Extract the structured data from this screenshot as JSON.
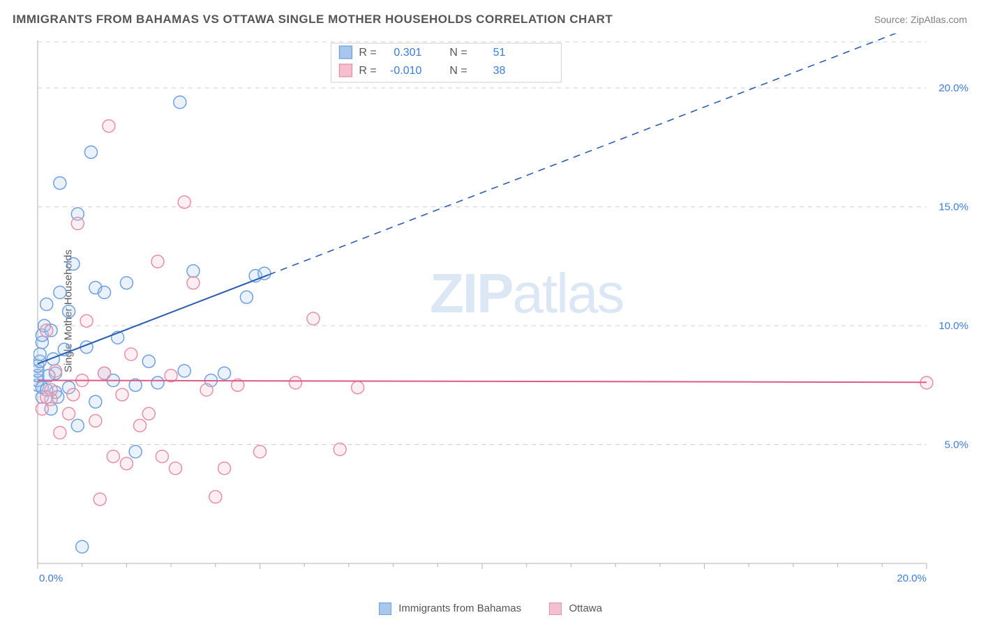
{
  "title": "IMMIGRANTS FROM BAHAMAS VS OTTAWA SINGLE MOTHER HOUSEHOLDS CORRELATION CHART",
  "source": "Source: ZipAtlas.com",
  "ylabel": "Single Mother Households",
  "watermark_a": "ZIP",
  "watermark_b": "atlas",
  "chart": {
    "type": "scatter",
    "xlim": [
      0,
      20
    ],
    "ylim": [
      0,
      22
    ],
    "x_ticks": [
      0,
      5,
      10,
      15,
      20
    ],
    "x_tick_labels": [
      "0.0%",
      "",
      "",
      "",
      "20.0%"
    ],
    "y_ticks": [
      5,
      10,
      15,
      20
    ],
    "y_tick_labels": [
      "5.0%",
      "10.0%",
      "15.0%",
      "20.0%"
    ],
    "marker_radius": 9,
    "marker_stroke_width": 1.5,
    "marker_fill_opacity": 0.25,
    "background_color": "#ffffff",
    "grid_color": "#d0d0d0",
    "axis_color": "#b0b0b0",
    "series": [
      {
        "name": "Immigrants from Bahamas",
        "color_stroke": "#6ea0e0",
        "color_fill": "#a9c6ec",
        "line_color": "#2a5db0",
        "R": "0.301",
        "N": "51",
        "trend": {
          "y0": 8.4,
          "slope": 0.72,
          "x_solid_end": 5.2,
          "x_dash_end": 20
        },
        "points": [
          [
            0.0,
            7.5
          ],
          [
            0.0,
            7.7
          ],
          [
            0.0,
            7.9
          ],
          [
            0.0,
            8.1
          ],
          [
            0.0,
            8.3
          ],
          [
            0.05,
            8.5
          ],
          [
            0.05,
            8.8
          ],
          [
            0.1,
            7.0
          ],
          [
            0.1,
            7.4
          ],
          [
            0.1,
            9.3
          ],
          [
            0.1,
            9.6
          ],
          [
            0.15,
            10.0
          ],
          [
            0.2,
            10.9
          ],
          [
            0.3,
            9.8
          ],
          [
            0.3,
            6.5
          ],
          [
            0.4,
            7.2
          ],
          [
            0.4,
            8.0
          ],
          [
            0.5,
            11.4
          ],
          [
            0.5,
            16.0
          ],
          [
            0.7,
            7.4
          ],
          [
            0.7,
            10.6
          ],
          [
            0.8,
            12.6
          ],
          [
            0.9,
            5.8
          ],
          [
            0.9,
            14.7
          ],
          [
            1.1,
            9.1
          ],
          [
            1.2,
            17.3
          ],
          [
            1.3,
            11.6
          ],
          [
            1.3,
            6.8
          ],
          [
            1.5,
            11.4
          ],
          [
            1.5,
            8.0
          ],
          [
            1.7,
            7.7
          ],
          [
            1.8,
            9.5
          ],
          [
            2.0,
            11.8
          ],
          [
            2.2,
            4.7
          ],
          [
            2.2,
            7.5
          ],
          [
            2.5,
            8.5
          ],
          [
            2.7,
            7.6
          ],
          [
            3.2,
            19.4
          ],
          [
            3.3,
            8.1
          ],
          [
            3.5,
            12.3
          ],
          [
            3.9,
            7.7
          ],
          [
            4.2,
            8.0
          ],
          [
            4.7,
            11.2
          ],
          [
            4.9,
            12.1
          ],
          [
            5.1,
            12.2
          ],
          [
            0.2,
            7.3
          ],
          [
            0.25,
            7.9
          ],
          [
            0.35,
            8.6
          ],
          [
            0.6,
            9.0
          ],
          [
            1.0,
            0.7
          ],
          [
            0.45,
            7.0
          ]
        ]
      },
      {
        "name": "Ottawa",
        "color_stroke": "#e68fa8",
        "color_fill": "#f4c0cf",
        "line_color": "#e05a85",
        "R": "-0.010",
        "N": "38",
        "trend": {
          "y0": 7.7,
          "slope": -0.004,
          "x_solid_end": 20,
          "x_dash_end": 20
        },
        "points": [
          [
            0.1,
            6.5
          ],
          [
            0.2,
            9.8
          ],
          [
            0.3,
            6.9
          ],
          [
            0.3,
            7.3
          ],
          [
            0.4,
            8.1
          ],
          [
            0.5,
            5.5
          ],
          [
            0.7,
            6.3
          ],
          [
            0.8,
            7.1
          ],
          [
            0.9,
            14.3
          ],
          [
            1.0,
            7.7
          ],
          [
            1.1,
            10.2
          ],
          [
            1.3,
            6.0
          ],
          [
            1.4,
            2.7
          ],
          [
            1.5,
            8.0
          ],
          [
            1.6,
            18.4
          ],
          [
            1.7,
            4.5
          ],
          [
            1.9,
            7.1
          ],
          [
            2.0,
            4.2
          ],
          [
            2.1,
            8.8
          ],
          [
            2.3,
            5.8
          ],
          [
            2.5,
            6.3
          ],
          [
            2.7,
            12.7
          ],
          [
            2.8,
            4.5
          ],
          [
            3.0,
            7.9
          ],
          [
            3.1,
            4.0
          ],
          [
            3.3,
            15.2
          ],
          [
            3.5,
            11.8
          ],
          [
            3.8,
            7.3
          ],
          [
            4.0,
            2.8
          ],
          [
            4.2,
            4.0
          ],
          [
            4.5,
            7.5
          ],
          [
            5.0,
            4.7
          ],
          [
            5.8,
            7.6
          ],
          [
            6.2,
            10.3
          ],
          [
            6.8,
            4.8
          ],
          [
            7.2,
            7.4
          ],
          [
            20.0,
            7.6
          ],
          [
            0.2,
            7.0
          ]
        ]
      }
    ]
  },
  "top_legend": {
    "r_label": "R =",
    "n_label": "N ="
  },
  "bottom_legend": {
    "items": [
      {
        "label": "Immigrants from Bahamas",
        "fill": "#a9c6ec",
        "stroke": "#6ea0e0"
      },
      {
        "label": "Ottawa",
        "fill": "#f4c0cf",
        "stroke": "#e68fa8"
      }
    ]
  }
}
